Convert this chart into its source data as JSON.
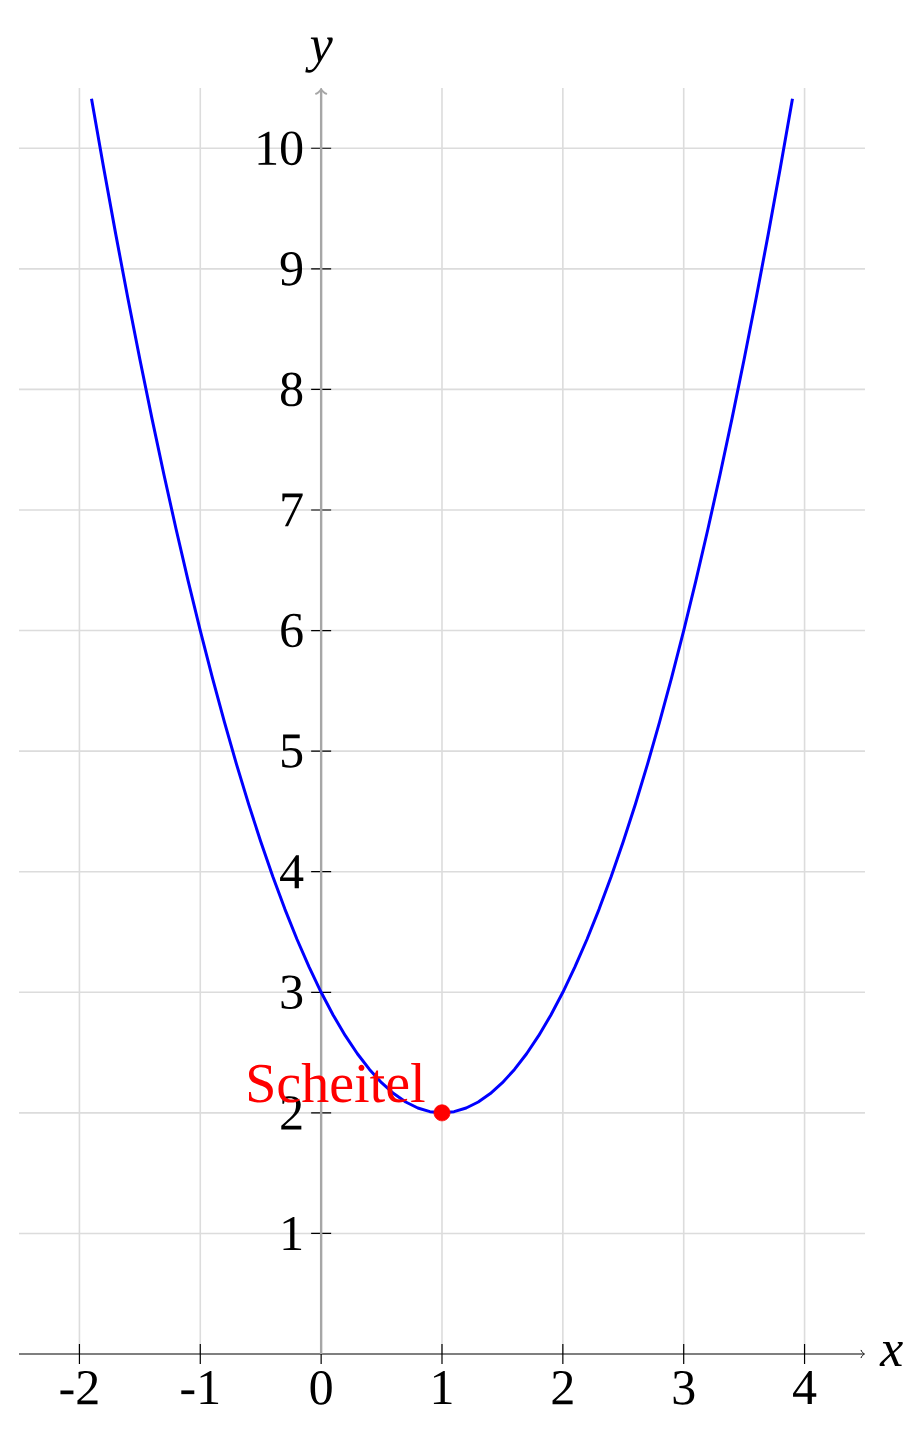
{
  "chart_data": {
    "type": "line",
    "xlabel": "x",
    "ylabel": "y",
    "xlim": [
      -2.5,
      4.5
    ],
    "ylim": [
      0,
      10.5
    ],
    "xticks": [
      -2,
      -1,
      0,
      1,
      2,
      3,
      4
    ],
    "yticks": [
      1,
      2,
      3,
      4,
      5,
      6,
      7,
      8,
      9,
      10
    ],
    "grid": true,
    "marker": "none",
    "line_style": "solid",
    "series": [
      {
        "color": "#0000ff",
        "x": [
          -1.9,
          -1.8,
          -1.7,
          -1.6,
          -1.5,
          -1.4,
          -1.3,
          -1.2,
          -1.1,
          -1.0,
          -0.9,
          -0.8,
          -0.7,
          -0.6,
          -0.5,
          -0.4,
          -0.3,
          -0.2,
          -0.1,
          0,
          0.1,
          0.2,
          0.3,
          0.4,
          0.5,
          0.6,
          0.7,
          0.8,
          0.9,
          1.0,
          1.1,
          1.2,
          1.3,
          1.4,
          1.5,
          1.6,
          1.7,
          1.8,
          1.9,
          2.0,
          2.1,
          2.2,
          2.3,
          2.4,
          2.5,
          2.6,
          2.7,
          2.8,
          2.9,
          3.0,
          3.1,
          3.2,
          3.3,
          3.4,
          3.5,
          3.6,
          3.7,
          3.8,
          3.9
        ],
        "values": [
          10.41,
          9.84,
          9.29,
          8.76,
          8.25,
          7.76,
          7.29,
          6.84,
          6.41,
          6,
          5.61,
          5.24,
          4.89,
          4.56,
          4.25,
          3.96,
          3.69,
          3.44,
          3.21,
          3,
          2.81,
          2.64,
          2.49,
          2.36,
          2.25,
          2.16,
          2.09,
          2.04,
          2.01,
          2,
          2.01,
          2.04,
          2.09,
          2.16,
          2.25,
          2.36,
          2.49,
          2.64,
          2.81,
          3,
          3.21,
          3.44,
          3.69,
          3.96,
          4.25,
          4.56,
          4.89,
          5.24,
          5.61,
          6,
          6.41,
          6.84,
          7.29,
          7.76,
          8.25,
          8.76,
          9.29,
          9.84,
          10.41
        ]
      },
      {
        "type": "scatter",
        "color": "#ff0000",
        "marker": "circle",
        "x": [
          1
        ],
        "values": [
          2
        ]
      }
    ],
    "annotations": [
      {
        "text": "Scheitel",
        "x": 1,
        "y": 2
      }
    ]
  }
}
